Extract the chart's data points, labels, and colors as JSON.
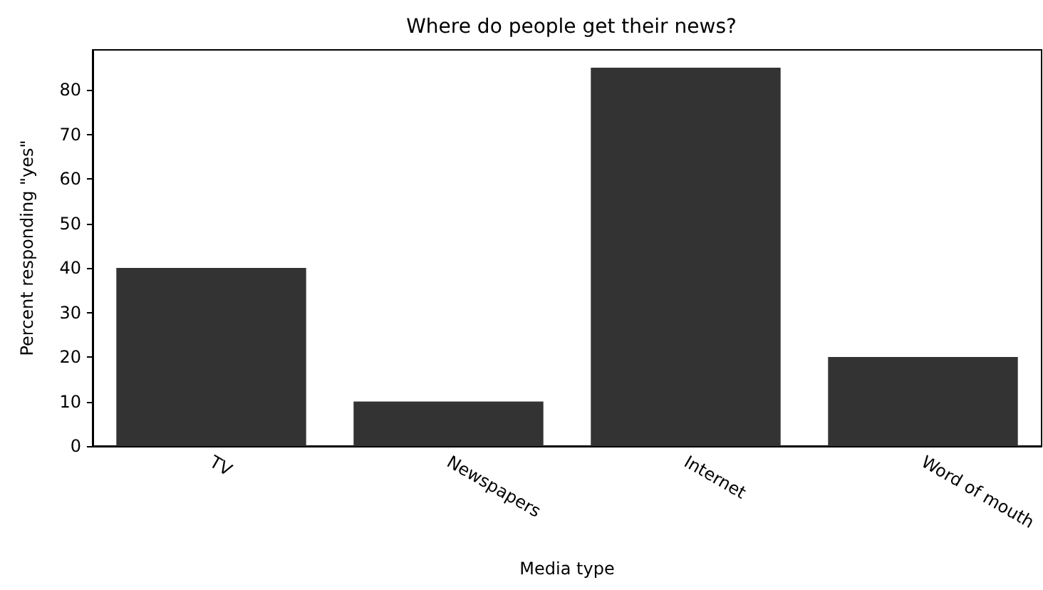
{
  "chart_data": {
    "type": "bar",
    "title": "Where do people get their news?",
    "xlabel": "Media type",
    "ylabel": "Percent responding \"yes\"",
    "categories": [
      "TV",
      "Newspapers",
      "Internet",
      "Word of mouth"
    ],
    "values": [
      40,
      10,
      85,
      20
    ],
    "color": "#333333",
    "ylim": [
      0,
      89
    ],
    "yticks": [
      0,
      10,
      20,
      30,
      40,
      50,
      60,
      70,
      80
    ],
    "grid": false
  }
}
